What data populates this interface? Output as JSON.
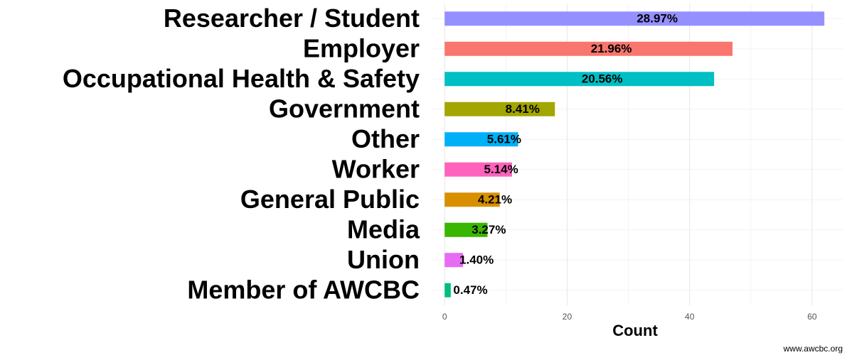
{
  "chart_data": {
    "type": "barh",
    "categories": [
      "Researcher / Student",
      "Employer",
      "Occupational Health & Safety",
      "Government",
      "Other",
      "Worker",
      "General Public",
      "Media",
      "Union",
      "Member of AWCBC"
    ],
    "values": [
      62,
      47,
      44,
      18,
      12,
      11,
      9,
      7,
      3,
      1
    ],
    "bar_labels": [
      "28.97%",
      "21.96%",
      "20.56%",
      "8.41%",
      "5.61%",
      "5.14%",
      "4.21%",
      "3.27%",
      "1.40%",
      "0.47%"
    ],
    "colors": [
      "#9590FF",
      "#F8766D",
      "#00BFC4",
      "#A3A500",
      "#00B0F6",
      "#FF62BC",
      "#D89000",
      "#39B600",
      "#E76BF3",
      "#00BF7D"
    ],
    "xlabel": "Count",
    "xlim": [
      -2,
      65
    ],
    "xticks": [
      0,
      20,
      40,
      60
    ],
    "grid": true,
    "source": "www.awcbc.org"
  }
}
